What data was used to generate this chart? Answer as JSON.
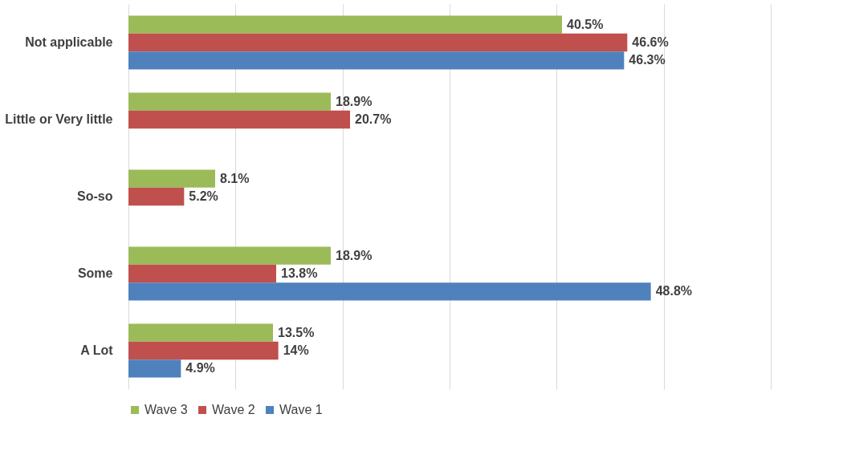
{
  "chart_data": {
    "type": "bar",
    "orientation": "horizontal",
    "categories": [
      "Not applicable",
      "Little or Very little",
      "So-so",
      "Some",
      "A Lot"
    ],
    "series": [
      {
        "name": "Wave 3",
        "color": "#9bbb59",
        "values": [
          40.5,
          18.9,
          8.1,
          18.9,
          13.5
        ],
        "value_labels": [
          "40.5%",
          "18.9%",
          "8.1%",
          "18.9%",
          "13.5%"
        ]
      },
      {
        "name": "Wave 2",
        "color": "#c0504d",
        "values": [
          46.6,
          20.7,
          5.2,
          13.8,
          14
        ],
        "value_labels": [
          "46.6%",
          "20.7%",
          "5.2%",
          "13.8%",
          "14%"
        ]
      },
      {
        "name": "Wave 1",
        "color": "#4f81bd",
        "values": [
          46.3,
          null,
          null,
          48.8,
          4.9
        ],
        "value_labels": [
          "46.3%",
          null,
          null,
          "48.8%",
          "4.9%"
        ]
      }
    ],
    "xlim": [
      0,
      60
    ],
    "xticks": [
      {
        "value": 0,
        "label": null
      },
      {
        "value": 10,
        "label": null
      },
      {
        "value": 20,
        "label": null
      },
      {
        "value": 30,
        "label": null
      },
      {
        "value": 40,
        "label": null
      },
      {
        "value": 50,
        "label": null
      },
      {
        "value": 60,
        "label": null
      }
    ],
    "tick_labels": "y",
    "grid": "x",
    "legend": "bottom"
  }
}
